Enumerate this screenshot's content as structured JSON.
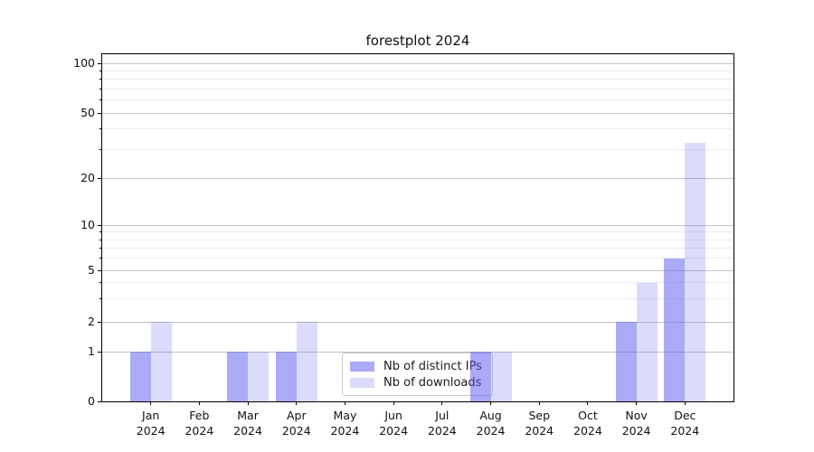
{
  "chart_data": {
    "type": "bar",
    "title": "forestplot 2024",
    "categories": [
      "Jan 2024",
      "Feb 2024",
      "Mar 2024",
      "Apr 2024",
      "May 2024",
      "Jun 2024",
      "Jul 2024",
      "Aug 2024",
      "Sep 2024",
      "Oct 2024",
      "Nov 2024",
      "Dec 2024"
    ],
    "series": [
      {
        "name": "Nb of distinct IPs",
        "values": [
          1,
          0,
          1,
          1,
          0,
          0,
          0,
          1,
          0,
          0,
          2,
          6
        ],
        "color": "rgba(85,85,240,0.5)"
      },
      {
        "name": "Nb of downloads",
        "values": [
          2,
          0,
          1,
          2,
          0,
          0,
          0,
          1,
          0,
          0,
          4,
          33
        ],
        "color": "rgba(85,85,240,0.21)"
      }
    ],
    "xlabel": "",
    "ylabel": "",
    "yscale": "symlog",
    "yticks": [
      0,
      1,
      2,
      5,
      10,
      20,
      50,
      100
    ],
    "minor_yticks": [
      3,
      4,
      6,
      7,
      8,
      9,
      30,
      40,
      60,
      70,
      80,
      90
    ],
    "ylim": [
      0,
      120
    ],
    "grid": true,
    "legend_position": "inside lower-center"
  }
}
